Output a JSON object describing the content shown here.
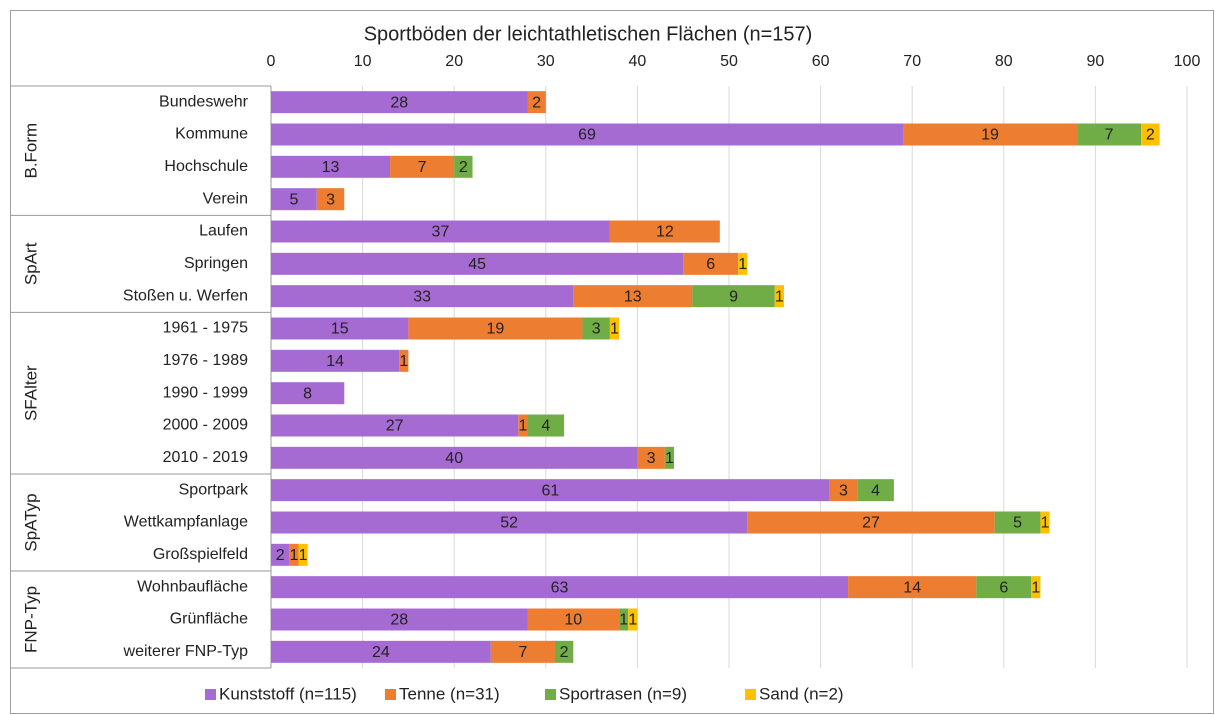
{
  "chart_data": {
    "type": "stacked-barh",
    "title": "Sportböden der leichtathletischen Flächen (n=157)",
    "groups": [
      {
        "label": "B.Form",
        "categories": [
          "Bundeswehr",
          "Kommune",
          "Hochschule",
          "Verein"
        ]
      },
      {
        "label": "SpArt",
        "categories": [
          "Laufen",
          "Springen",
          "Stoßen u. Werfen"
        ]
      },
      {
        "label": "SFAlter",
        "categories": [
          "1961 - 1975",
          "1976 - 1989",
          "1990 - 1999",
          "2000 - 2009",
          "2010 - 2019"
        ]
      },
      {
        "label": "SpATyp",
        "categories": [
          "Sportpark",
          "Wettkampfanlage",
          "Großspielfeld"
        ]
      },
      {
        "label": "FNP-Typ",
        "categories": [
          "Wohnbaufläche",
          "Grünfläche",
          "weiterer FNP-Typ"
        ]
      }
    ],
    "series": [
      {
        "name": "Kunststoff (n=115)",
        "color": "#a66bd3",
        "values": [
          28,
          69,
          13,
          5,
          37,
          45,
          33,
          15,
          14,
          8,
          27,
          40,
          61,
          52,
          2,
          63,
          28,
          24
        ]
      },
      {
        "name": "Tenne (n=31)",
        "color": "#ed7d31",
        "values": [
          2,
          19,
          7,
          3,
          12,
          6,
          13,
          19,
          1,
          null,
          1,
          3,
          3,
          27,
          1,
          14,
          10,
          7
        ]
      },
      {
        "name": "Sportrasen (n=9)",
        "color": "#70ad47",
        "values": [
          null,
          7,
          2,
          null,
          null,
          null,
          9,
          3,
          null,
          null,
          4,
          1,
          4,
          5,
          null,
          6,
          1,
          2
        ]
      },
      {
        "name": "Sand (n=2)",
        "color": "#ffc000",
        "values": [
          null,
          2,
          null,
          null,
          null,
          1,
          1,
          1,
          null,
          null,
          null,
          null,
          null,
          1,
          1,
          1,
          1,
          null
        ]
      }
    ],
    "xlim": [
      0,
      100
    ],
    "xticks": [
      0,
      10,
      20,
      30,
      40,
      50,
      60,
      70,
      80,
      90,
      100
    ],
    "grid": true,
    "legend": "bottom"
  }
}
